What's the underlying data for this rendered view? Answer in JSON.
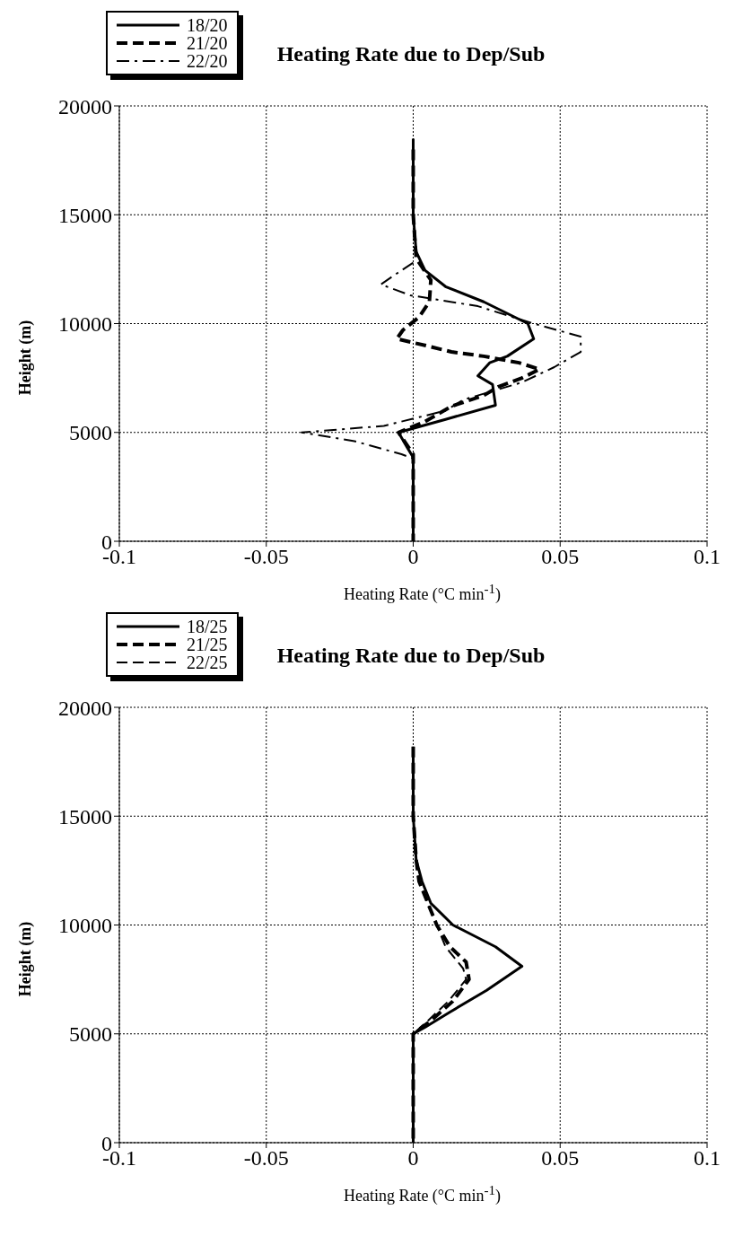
{
  "chart_data": [
    {
      "type": "line",
      "title": "Heating Rate due to Dep/Sub",
      "xlabel": "Heating Rate (°C min$^{-1}$)",
      "ylabel": "Height (m)",
      "xlim": [
        -0.1,
        0.1
      ],
      "xticks": [
        -0.1,
        -0.05,
        0,
        0.05,
        0.1
      ],
      "ylim": [
        0,
        20000
      ],
      "yticks": [
        0,
        5000,
        10000,
        15000,
        20000
      ],
      "grid": true,
      "legend": "top left",
      "series": [
        {
          "name": "18/20",
          "color": "#000000",
          "line_style": "solid",
          "x": [
            0,
            0,
            0.001,
            0.004,
            0.011,
            0.024,
            0.039,
            0.041,
            0.032,
            0.026,
            0.022,
            0.027,
            0.028,
            0.011,
            -0.005,
            -0.002,
            0,
            0
          ],
          "values": [
            18500,
            15000,
            13300,
            12450,
            11700,
            11000,
            10000,
            9300,
            8500,
            8200,
            7600,
            7200,
            6250,
            5600,
            5000,
            4300,
            3850,
            0
          ]
        },
        {
          "name": "21/20",
          "color": "#000000",
          "line_style": "dashed",
          "x": [
            0,
            0,
            0.001,
            0.006,
            0.0055,
            0.002,
            -0.0035,
            -0.0056,
            0.004,
            0.013,
            0.024,
            0.036,
            0.043,
            0.037,
            0.029,
            0.024,
            0.013,
            0.004,
            -0.005,
            0,
            0
          ],
          "values": [
            18000,
            15000,
            13000,
            12000,
            11000,
            10300,
            9700,
            9300,
            9000,
            8700,
            8500,
            8200,
            7900,
            7500,
            7100,
            6700,
            6200,
            5500,
            5000,
            4000,
            0
          ]
        },
        {
          "name": "22/20",
          "color": "#000000",
          "line_style": "dashdot",
          "x": [
            0,
            -0.0056,
            -0.011,
            -0.001,
            0.022,
            0.041,
            0.057,
            0.057,
            0.048,
            0.037,
            0.017,
            0.011,
            -0.01,
            -0.038,
            -0.02,
            -0.004,
            0
          ],
          "values": [
            12800,
            12300,
            11800,
            11300,
            10800,
            10000,
            9400,
            8700,
            8000,
            7300,
            6500,
            6000,
            5300,
            5000,
            4600,
            4000,
            3800
          ]
        }
      ]
    },
    {
      "type": "line",
      "title": "Heating Rate due to Dep/Sub",
      "xlabel": "Heating Rate (°C min$^{-1}$)",
      "ylabel": "Height (m)",
      "xlim": [
        -0.1,
        0.1
      ],
      "xticks": [
        -0.1,
        -0.05,
        0,
        0.05,
        0.1
      ],
      "ylim": [
        0,
        20000
      ],
      "yticks": [
        0,
        5000,
        10000,
        15000,
        20000
      ],
      "grid": true,
      "legend": "top left",
      "series": [
        {
          "name": "18/25",
          "color": "#000000",
          "line_style": "solid",
          "x": [
            0,
            0,
            0.001,
            0.003,
            0.006,
            0.0135,
            0.028,
            0.037,
            0.025,
            0.0125,
            0.004,
            0,
            0
          ],
          "values": [
            18000,
            15000,
            13000,
            12000,
            11000,
            10000,
            9000,
            8100,
            7000,
            6000,
            5300,
            5000,
            0
          ]
        },
        {
          "name": "21/25",
          "color": "#000000",
          "line_style": "dashed",
          "x": [
            0,
            0,
            0.001,
            0.002,
            0.005,
            0.008,
            0.0125,
            0.018,
            0.019,
            0.0135,
            0.006,
            0,
            0
          ],
          "values": [
            18200,
            15000,
            13000,
            12000,
            11000,
            10000,
            9000,
            8300,
            7500,
            6500,
            5600,
            5000,
            0
          ]
        },
        {
          "name": "22/25",
          "color": "#000000",
          "line_style": "dashed",
          "x": [
            0,
            0,
            0.001,
            0.002,
            0.005,
            0.008,
            0.011,
            0.017,
            0.018,
            0.012,
            0.005,
            0,
            0
          ],
          "values": [
            18200,
            15000,
            13000,
            12000,
            11000,
            10000,
            9000,
            8000,
            7500,
            6500,
            5600,
            5000,
            0
          ]
        }
      ]
    }
  ]
}
